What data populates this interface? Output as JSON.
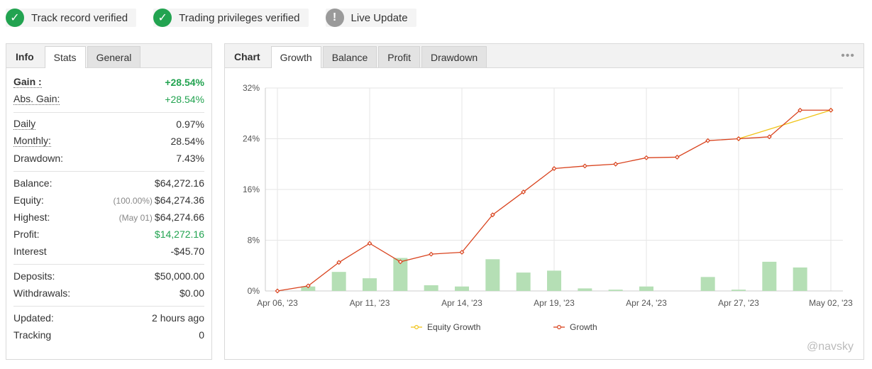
{
  "badges": [
    {
      "label": "Track record verified",
      "icon": "check-icon",
      "color": "#22a350"
    },
    {
      "label": "Trading privileges verified",
      "icon": "check-icon",
      "color": "#22a350"
    },
    {
      "label": "Live Update",
      "icon": "exclamation-icon",
      "color": "#9a9a9a"
    }
  ],
  "left_tabs": {
    "info": "Info",
    "stats": "Stats",
    "general": "General",
    "active": "Stats"
  },
  "stats": {
    "gain": {
      "label": "Gain :",
      "value": "+28.54%"
    },
    "abs_gain": {
      "label": "Abs. Gain:",
      "value": "+28.54%"
    },
    "daily": {
      "label": "Daily",
      "value": "0.97%"
    },
    "monthly": {
      "label": "Monthly:",
      "value": "28.54%"
    },
    "drawdown": {
      "label": "Drawdown:",
      "value": "7.43%"
    },
    "balance": {
      "label": "Balance:",
      "value": "$64,272.16"
    },
    "equity": {
      "label": "Equity:",
      "note": "(100.00%)",
      "value": "$64,274.36"
    },
    "highest": {
      "label": "Highest:",
      "note": "(May 01)",
      "value": "$64,274.66"
    },
    "profit": {
      "label": "Profit:",
      "value": "$14,272.16"
    },
    "interest": {
      "label": "Interest",
      "value": "-$45.70"
    },
    "deposits": {
      "label": "Deposits:",
      "value": "$50,000.00"
    },
    "withdrawals": {
      "label": "Withdrawals:",
      "value": "$0.00"
    },
    "updated": {
      "label": "Updated:",
      "value": "2 hours ago"
    },
    "tracking": {
      "label": "Tracking",
      "value": "0"
    }
  },
  "right_tabs": {
    "chart": "Chart",
    "growth": "Growth",
    "balance": "Balance",
    "profit": "Profit",
    "drawdown": "Drawdown",
    "active": "Growth",
    "more": "•••"
  },
  "watermark": "@navsky",
  "colors": {
    "growth_line": "#d9431e",
    "equity_line": "#f0c419",
    "bars": "#b5dfb5",
    "positive": "#22a350"
  },
  "chart_data": {
    "type": "line",
    "x": [
      "Apr 06, '23",
      "Apr 07, '23",
      "Apr 10, '23",
      "Apr 11, '23",
      "Apr 12, '23",
      "Apr 13, '23",
      "Apr 14, '23",
      "Apr 17, '23",
      "Apr 18, '23",
      "Apr 19, '23",
      "Apr 20, '23",
      "Apr 21, '23",
      "Apr 24, '23",
      "Apr 25, '23",
      "Apr 26, '23",
      "Apr 27, '23",
      "Apr 28, '23",
      "May 01, '23",
      "May 02, '23"
    ],
    "tick_labels": [
      "Apr 06, '23",
      "Apr 11, '23",
      "Apr 14, '23",
      "Apr 19, '23",
      "Apr 24, '23",
      "Apr 27, '23",
      "May 02, '23"
    ],
    "tick_indices": [
      0,
      3,
      6,
      9,
      12,
      15,
      18
    ],
    "yticks": [
      "0%",
      "8%",
      "16%",
      "24%",
      "32%"
    ],
    "ylim": [
      0,
      32
    ],
    "series": [
      {
        "name": "Growth",
        "values": [
          0.0,
          0.8,
          4.5,
          7.5,
          4.6,
          5.8,
          6.1,
          12.0,
          15.6,
          19.3,
          19.7,
          20.0,
          21.0,
          21.1,
          23.7,
          24.0,
          24.3,
          28.5,
          28.5
        ]
      },
      {
        "name": "Equity Growth",
        "values": [
          null,
          null,
          null,
          null,
          null,
          null,
          null,
          null,
          null,
          null,
          null,
          null,
          null,
          null,
          null,
          24.0,
          null,
          null,
          28.5
        ]
      }
    ],
    "bars": [
      0,
      0.7,
      3.0,
      2.0,
      5.2,
      0.9,
      0.7,
      5.0,
      2.9,
      3.2,
      0.4,
      0.2,
      0.7,
      0,
      2.2,
      0.2,
      4.6,
      3.7,
      0
    ],
    "legend": [
      "Equity Growth",
      "Growth"
    ],
    "legend_position": "bottom",
    "grid": true
  }
}
